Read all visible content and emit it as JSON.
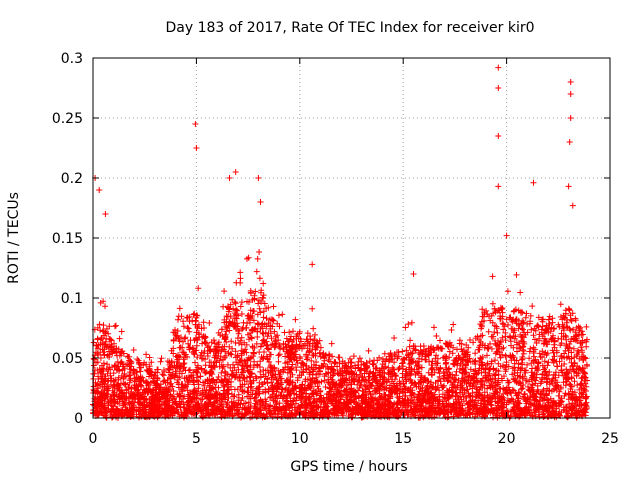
{
  "chart_data": {
    "type": "scatter",
    "title": "Day 183 of 2017, Rate Of TEC Index for receiver kir0",
    "xlabel": "GPS time / hours",
    "ylabel": "ROTI / TECUs",
    "xlim": [
      0,
      25
    ],
    "ylim": [
      0,
      0.3
    ],
    "xticks": [
      0,
      5,
      10,
      15,
      20,
      25
    ],
    "xtick_labels": [
      "0",
      "5",
      "10",
      "15",
      "20",
      "25"
    ],
    "yticks": [
      0,
      0.05,
      0.1,
      0.15,
      0.2,
      0.25,
      0.3
    ],
    "ytick_labels": [
      "0",
      "0.05",
      "0.1",
      "0.15",
      "0.2",
      "0.25",
      "0.3"
    ],
    "grid": true,
    "marker": "+",
    "color": "#ff0000",
    "envelope": {
      "x": [
        0,
        0.5,
        1,
        1.5,
        2,
        2.5,
        3,
        3.5,
        4,
        4.5,
        5,
        5.5,
        6,
        6.5,
        7,
        7.5,
        8,
        8.5,
        9,
        9.5,
        10,
        10.5,
        11,
        11.5,
        12,
        12.5,
        13,
        13.5,
        14,
        14.5,
        15,
        15.5,
        16,
        16.5,
        17,
        17.5,
        18,
        18.5,
        19,
        19.5,
        20,
        20.5,
        21,
        21.5,
        22,
        22.5,
        23,
        23.5,
        23.9
      ],
      "typical_max": [
        0.1,
        0.1,
        0.08,
        0.07,
        0.06,
        0.06,
        0.05,
        0.05,
        0.1,
        0.11,
        0.12,
        0.09,
        0.08,
        0.12,
        0.13,
        0.14,
        0.14,
        0.12,
        0.1,
        0.09,
        0.09,
        0.09,
        0.08,
        0.07,
        0.06,
        0.06,
        0.06,
        0.06,
        0.06,
        0.07,
        0.08,
        0.08,
        0.08,
        0.08,
        0.08,
        0.08,
        0.08,
        0.09,
        0.12,
        0.12,
        0.12,
        0.12,
        0.11,
        0.11,
        0.11,
        0.11,
        0.12,
        0.1,
        0.08
      ]
    },
    "peaks": [
      {
        "x": 0.1,
        "y": 0.2
      },
      {
        "x": 0.3,
        "y": 0.19
      },
      {
        "x": 0.6,
        "y": 0.17
      },
      {
        "x": 4.95,
        "y": 0.245
      },
      {
        "x": 5.0,
        "y": 0.225
      },
      {
        "x": 6.6,
        "y": 0.2
      },
      {
        "x": 6.9,
        "y": 0.205
      },
      {
        "x": 8.0,
        "y": 0.2
      },
      {
        "x": 8.1,
        "y": 0.18
      },
      {
        "x": 10.6,
        "y": 0.128
      },
      {
        "x": 15.5,
        "y": 0.12
      },
      {
        "x": 19.6,
        "y": 0.292
      },
      {
        "x": 19.6,
        "y": 0.275
      },
      {
        "x": 19.6,
        "y": 0.235
      },
      {
        "x": 19.6,
        "y": 0.193
      },
      {
        "x": 20.0,
        "y": 0.152
      },
      {
        "x": 21.3,
        "y": 0.196
      },
      {
        "x": 23.1,
        "y": 0.28
      },
      {
        "x": 23.1,
        "y": 0.27
      },
      {
        "x": 23.1,
        "y": 0.25
      },
      {
        "x": 23.05,
        "y": 0.23
      },
      {
        "x": 23.0,
        "y": 0.193
      },
      {
        "x": 23.2,
        "y": 0.177
      }
    ]
  }
}
